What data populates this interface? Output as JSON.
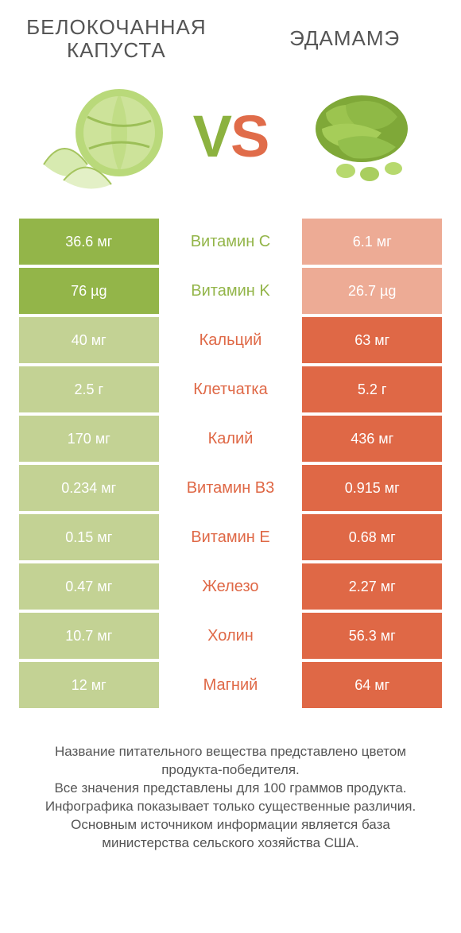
{
  "colors": {
    "left": "#93b549",
    "left_muted": "#c3d294",
    "right": "#df6846",
    "right_muted": "#edab95",
    "text_gray": "#555555",
    "bg": "#ffffff"
  },
  "typography": {
    "title_fontsize": 26,
    "vs_fontsize": 74,
    "cell_fontsize": 18,
    "mid_fontsize": 20,
    "footer_fontsize": 17
  },
  "header": {
    "left_title": "БЕЛОКОЧАННАЯ КАПУСТА",
    "right_title": "ЭДАМАМЭ",
    "vs_v": "V",
    "vs_s": "S"
  },
  "rows": [
    {
      "left": "36.6 мг",
      "mid": "Витамин C",
      "right": "6.1 мг",
      "winner": "left"
    },
    {
      "left": "76 µg",
      "mid": "Витамин K",
      "right": "26.7 µg",
      "winner": "left"
    },
    {
      "left": "40 мг",
      "mid": "Кальций",
      "right": "63 мг",
      "winner": "right"
    },
    {
      "left": "2.5 г",
      "mid": "Клетчатка",
      "right": "5.2 г",
      "winner": "right"
    },
    {
      "left": "170 мг",
      "mid": "Калий",
      "right": "436 мг",
      "winner": "right"
    },
    {
      "left": "0.234 мг",
      "mid": "Витамин B3",
      "right": "0.915 мг",
      "winner": "right"
    },
    {
      "left": "0.15 мг",
      "mid": "Витамин E",
      "right": "0.68 мг",
      "winner": "right"
    },
    {
      "left": "0.47 мг",
      "mid": "Железо",
      "right": "2.27 мг",
      "winner": "right"
    },
    {
      "left": "10.7 мг",
      "mid": "Холин",
      "right": "56.3 мг",
      "winner": "right"
    },
    {
      "left": "12 мг",
      "mid": "Магний",
      "right": "64 мг",
      "winner": "right"
    }
  ],
  "footer": [
    "Название питательного вещества представлено цветом продукта-победителя.",
    "Все значения представлены для 100 граммов продукта.",
    "Инфографика показывает только существенные различия.",
    "Основным источником информации является база министерства сельского хозяйства США."
  ]
}
